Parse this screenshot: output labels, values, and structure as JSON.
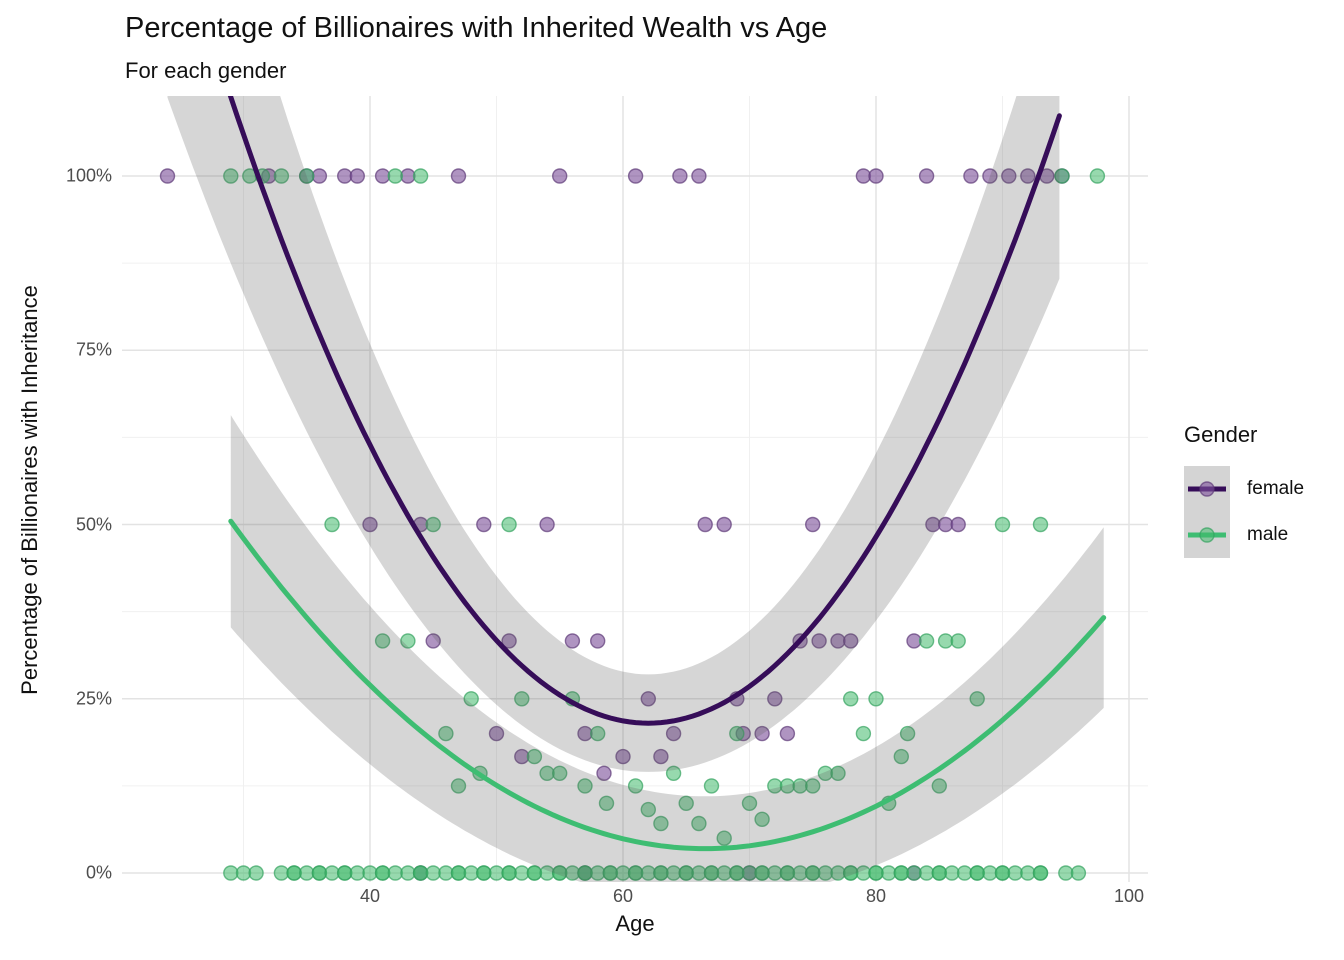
{
  "chart_data": {
    "type": "scatter",
    "title": "Percentage of Billionaires with Inherited Wealth vs Age",
    "subtitle": "For each gender",
    "xlabel": "Age",
    "ylabel": "Percentage of Billionaires with Inheritance",
    "grid": "on",
    "legend_position": "right",
    "xlim": [
      20.4,
      101.5
    ],
    "ylim_pct": [
      -1.29,
      111.48
    ],
    "x_major_ticks": [
      40,
      60,
      80,
      100
    ],
    "x_minor_gridlines": [
      30,
      50,
      70,
      90
    ],
    "y_major_ticks": [
      {
        "pct": 0,
        "label": "0%"
      },
      {
        "pct": 25,
        "label": "25%"
      },
      {
        "pct": 50,
        "label": "50%"
      },
      {
        "pct": 75,
        "label": "75%"
      },
      {
        "pct": 100,
        "label": "100%"
      }
    ],
    "y_minor_gridlines": [
      12.5,
      37.5,
      62.5,
      87.5
    ],
    "ribbon_fill": "rgba(90,90,90,0.25)",
    "colors": {
      "major_grid": "#e3e3e3",
      "minor_grid": "#f0f0f0",
      "tick_text": "#4d4d4d",
      "legend_key_bg": "#d4d4d4",
      "female_line": "#360d59",
      "male_line": "#3ebd72"
    },
    "series": [
      {
        "name": "female",
        "point_fill": "#7e529b",
        "point_stroke": "#5e3a77",
        "point_fill_opacity": 0.62,
        "points": [
          [
            24,
            100
          ],
          [
            32,
            100
          ],
          [
            35,
            100
          ],
          [
            36,
            100
          ],
          [
            38,
            100
          ],
          [
            39,
            100
          ],
          [
            41,
            100
          ],
          [
            43,
            100
          ],
          [
            47,
            100
          ],
          [
            55,
            100
          ],
          [
            61,
            100
          ],
          [
            64.5,
            100
          ],
          [
            66,
            100
          ],
          [
            79,
            100
          ],
          [
            80,
            100
          ],
          [
            84,
            100
          ],
          [
            87.5,
            100
          ],
          [
            89,
            100
          ],
          [
            90.5,
            100
          ],
          [
            92,
            100
          ],
          [
            93.5,
            100
          ],
          [
            94.7,
            100
          ],
          [
            40,
            50
          ],
          [
            44,
            50
          ],
          [
            49,
            50
          ],
          [
            54,
            50
          ],
          [
            66.5,
            50
          ],
          [
            68,
            50
          ],
          [
            75,
            50
          ],
          [
            84.5,
            50
          ],
          [
            85.5,
            50
          ],
          [
            86.5,
            50
          ],
          [
            45,
            33.3
          ],
          [
            51,
            33.3
          ],
          [
            56,
            33.3
          ],
          [
            58,
            33.3
          ],
          [
            74,
            33.3
          ],
          [
            75.5,
            33.3
          ],
          [
            77,
            33.3
          ],
          [
            78,
            33.3
          ],
          [
            83,
            33.3
          ],
          [
            62,
            25
          ],
          [
            69,
            25
          ],
          [
            72,
            25
          ],
          [
            50,
            20
          ],
          [
            57,
            20
          ],
          [
            64,
            20
          ],
          [
            69.5,
            20
          ],
          [
            71,
            20
          ],
          [
            73,
            20
          ],
          [
            52,
            16.7
          ],
          [
            60,
            16.7
          ],
          [
            63,
            16.7
          ],
          [
            58.5,
            14.3
          ],
          [
            44,
            0
          ],
          [
            57,
            0
          ],
          [
            70,
            0
          ],
          [
            83,
            0
          ]
        ]
      },
      {
        "name": "male",
        "point_fill": "#41b96b",
        "point_stroke": "#35a35f",
        "point_fill_opacity": 0.55,
        "points": [
          [
            29,
            100
          ],
          [
            30.5,
            100
          ],
          [
            31.5,
            100
          ],
          [
            33,
            100
          ],
          [
            35,
            100
          ],
          [
            42,
            100
          ],
          [
            44,
            100
          ],
          [
            94.7,
            100
          ],
          [
            97.5,
            100
          ],
          [
            37,
            50
          ],
          [
            45,
            50
          ],
          [
            51,
            50
          ],
          [
            90,
            50
          ],
          [
            93,
            50
          ],
          [
            41,
            33.3
          ],
          [
            43,
            33.3
          ],
          [
            84,
            33.3
          ],
          [
            85.5,
            33.3
          ],
          [
            86.5,
            33.3
          ],
          [
            48,
            25
          ],
          [
            52,
            25
          ],
          [
            56,
            25
          ],
          [
            78,
            25
          ],
          [
            80,
            25
          ],
          [
            88,
            25
          ],
          [
            46,
            20
          ],
          [
            58,
            20
          ],
          [
            69,
            20
          ],
          [
            79,
            20
          ],
          [
            82.5,
            20
          ],
          [
            53,
            16.7
          ],
          [
            82,
            16.7
          ],
          [
            48.7,
            14.3
          ],
          [
            54,
            14.3
          ],
          [
            55,
            14.3
          ],
          [
            64,
            14.3
          ],
          [
            76,
            14.3
          ],
          [
            77,
            14.3
          ],
          [
            47,
            12.5
          ],
          [
            57,
            12.5
          ],
          [
            61,
            12.5
          ],
          [
            67,
            12.5
          ],
          [
            72,
            12.5
          ],
          [
            73,
            12.5
          ],
          [
            74,
            12.5
          ],
          [
            75,
            12.5
          ],
          [
            85,
            12.5
          ],
          [
            58.7,
            10
          ],
          [
            65,
            10
          ],
          [
            70,
            10
          ],
          [
            81,
            10
          ],
          [
            62,
            9.1
          ],
          [
            71,
            7.7
          ],
          [
            63,
            7.1
          ],
          [
            66,
            7.1
          ],
          [
            68,
            5
          ],
          [
            29,
            0
          ],
          [
            30,
            0
          ],
          [
            31,
            0
          ],
          [
            33,
            0
          ],
          [
            34,
            0
          ],
          [
            34,
            0
          ],
          [
            35,
            0
          ],
          [
            36,
            0
          ],
          [
            36,
            0
          ],
          [
            37,
            0
          ],
          [
            38,
            0
          ],
          [
            38,
            0
          ],
          [
            39,
            0
          ],
          [
            40,
            0
          ],
          [
            41,
            0
          ],
          [
            41,
            0
          ],
          [
            42,
            0
          ],
          [
            43,
            0
          ],
          [
            44,
            0
          ],
          [
            44,
            0
          ],
          [
            45,
            0
          ],
          [
            46,
            0
          ],
          [
            47,
            0
          ],
          [
            47,
            0
          ],
          [
            48,
            0
          ],
          [
            49,
            0
          ],
          [
            49,
            0
          ],
          [
            50,
            0
          ],
          [
            51,
            0
          ],
          [
            51,
            0
          ],
          [
            52,
            0
          ],
          [
            53,
            0
          ],
          [
            53,
            0
          ],
          [
            54,
            0
          ],
          [
            55,
            0
          ],
          [
            55,
            0
          ],
          [
            56,
            0
          ],
          [
            57,
            0
          ],
          [
            57,
            0
          ],
          [
            58,
            0
          ],
          [
            59,
            0
          ],
          [
            59,
            0
          ],
          [
            60,
            0
          ],
          [
            61,
            0
          ],
          [
            61,
            0
          ],
          [
            62,
            0
          ],
          [
            63,
            0
          ],
          [
            63,
            0
          ],
          [
            64,
            0
          ],
          [
            65,
            0
          ],
          [
            65,
            0
          ],
          [
            66,
            0
          ],
          [
            67,
            0
          ],
          [
            67,
            0
          ],
          [
            68,
            0
          ],
          [
            69,
            0
          ],
          [
            69,
            0
          ],
          [
            70,
            0
          ],
          [
            71,
            0
          ],
          [
            71,
            0
          ],
          [
            72,
            0
          ],
          [
            73,
            0
          ],
          [
            73,
            0
          ],
          [
            74,
            0
          ],
          [
            75,
            0
          ],
          [
            75,
            0
          ],
          [
            76,
            0
          ],
          [
            77,
            0
          ],
          [
            78,
            0
          ],
          [
            78,
            0
          ],
          [
            79,
            0
          ],
          [
            80,
            0
          ],
          [
            80,
            0
          ],
          [
            81,
            0
          ],
          [
            82,
            0
          ],
          [
            82,
            0
          ],
          [
            83,
            0
          ],
          [
            84,
            0
          ],
          [
            85,
            0
          ],
          [
            85,
            0
          ],
          [
            86,
            0
          ],
          [
            87,
            0
          ],
          [
            88,
            0
          ],
          [
            88,
            0
          ],
          [
            89,
            0
          ],
          [
            90,
            0
          ],
          [
            90,
            0
          ],
          [
            91,
            0
          ],
          [
            92,
            0
          ],
          [
            93,
            0
          ],
          [
            93,
            0
          ],
          [
            95,
            0
          ],
          [
            96,
            0
          ]
        ]
      }
    ],
    "smooths": [
      {
        "name": "female",
        "color": "#360d59",
        "vertex_age": 62,
        "vertex_pct": 21.5,
        "a": 0.0825,
        "h0": 7,
        "h1": 0.0155,
        "age_min": 24,
        "age_max": 94.5
      },
      {
        "name": "male",
        "color": "#3ebd72",
        "vertex_age": 66.5,
        "vertex_pct": 3.5,
        "a": 0.0334,
        "h0": 7.5,
        "h1": 0.0055,
        "age_min": 29,
        "age_max": 98
      }
    ]
  },
  "legend": {
    "title": "Gender",
    "items": [
      {
        "label": "female"
      },
      {
        "label": "male"
      }
    ]
  }
}
